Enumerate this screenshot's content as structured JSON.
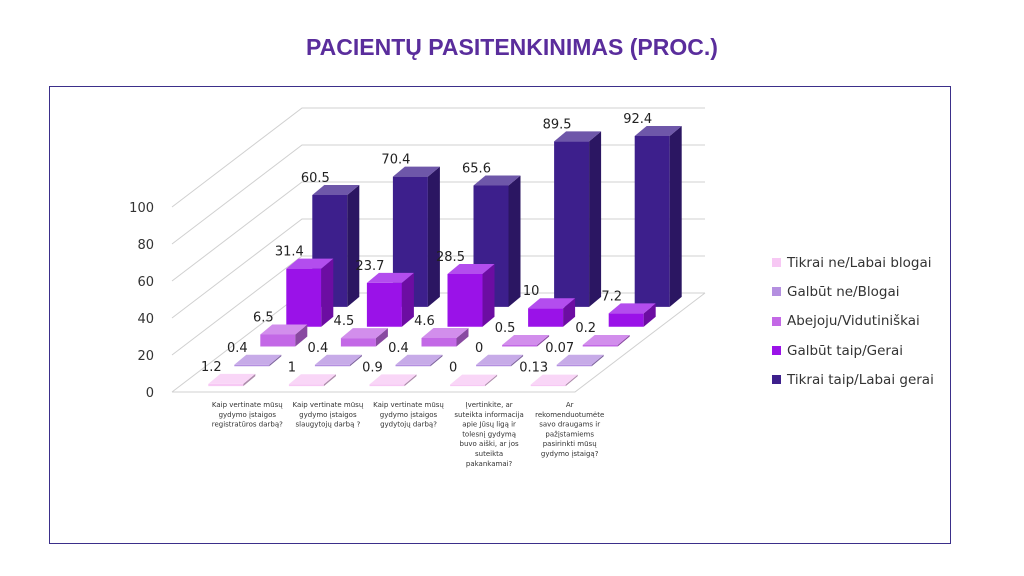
{
  "title": "PACIENTŲ PASITENKINIMAS (PROC.)",
  "chart_data": {
    "type": "bar",
    "subtype": "3d-grouped-depth",
    "categories": [
      [
        "Kaip vertinate mūsų",
        "gydymo įstaigos",
        "registratūros darbą?"
      ],
      [
        "Kaip vertinate mūsų",
        "gydymo įstaigos",
        "slaugytojų darbą ?"
      ],
      [
        "Kaip vertinate mūsų",
        "gydymo įstaigos",
        "gydytojų darbą?"
      ],
      [
        "Įvertinkite, ar",
        "suteikta informacija",
        "apie Jūsų ligą ir",
        "tolesnį gydymą",
        "buvo aiški, ar jos",
        "suteikta",
        "pakankamai?"
      ],
      [
        "Ar",
        "rekomenduotumėte",
        "savo draugams ir",
        "pažįstamiems",
        "pasirinkti mūsų",
        "gydymo įstaigą?"
      ]
    ],
    "series": [
      {
        "name": "Tikrai ne/Labai blogai",
        "color": "#f7c8f4",
        "values": [
          1.2,
          1,
          0.9,
          0,
          0.13
        ],
        "labels": [
          "1.2",
          "1",
          "0.9",
          "0",
          "0.13"
        ]
      },
      {
        "name": "Galbūt ne/Blogai",
        "color": "#b48fe0",
        "values": [
          0.4,
          0.4,
          0.4,
          0,
          0.07
        ],
        "labels": [
          "0.4",
          "0.4",
          "0.4",
          "0",
          "0.07"
        ]
      },
      {
        "name": "Abejoju/Vidutiniškai",
        "color": "#c368e6",
        "values": [
          6.5,
          4.5,
          4.6,
          0.5,
          0.2
        ],
        "labels": [
          "6.5",
          "4.5",
          "4.6",
          "0.5",
          "0.2"
        ]
      },
      {
        "name": "Galbūt taip/Gerai",
        "color": "#9a12e8",
        "values": [
          31.4,
          23.7,
          28.5,
          10,
          7.2
        ],
        "labels": [
          "31.4",
          "23.7",
          "28.5",
          "10",
          "7.2"
        ]
      },
      {
        "name": "Tikrai taip/Labai gerai",
        "color": "#3d1f8c",
        "values": [
          60.5,
          70.4,
          65.6,
          89.5,
          92.4
        ],
        "labels": [
          "60.5",
          "70.4",
          "65.6",
          "89.5",
          "92.4"
        ]
      }
    ],
    "yticks": [
      0,
      20,
      40,
      60,
      80,
      100
    ],
    "ylim": [
      0,
      100
    ],
    "legend": "right",
    "grid": true
  }
}
